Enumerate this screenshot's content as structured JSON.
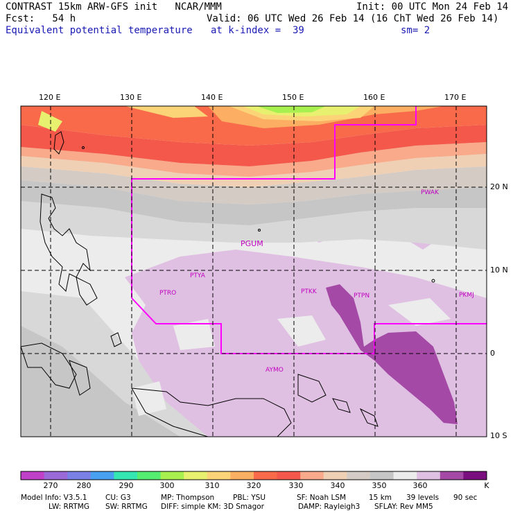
{
  "header": {
    "line1_left": "CONTRAST 15km ARW-GFS init   NCAR/MMM",
    "line1_right": "Init: 00 UTC Mon 24 Feb 14",
    "line2_left": "Fcst:   54 h",
    "line2_right": "Valid: 06 UTC Wed 26 Feb 14 (16 ChT Wed 26 Feb 14)",
    "line3_field": "Equivalent potential temperature",
    "line3_level": "at k-index =  39",
    "line3_sm": "sm= 2"
  },
  "map": {
    "lon_labels": [
      "120 E",
      "130 E",
      "140 E",
      "150 E",
      "160 E",
      "170 E"
    ],
    "lat_labels": [
      "20 N",
      "10 N",
      "0",
      "10 S"
    ],
    "stations": [
      "PWAK",
      "PGUM",
      "PTYA",
      "PTRO",
      "PTKK",
      "PTPN",
      "PKMJ",
      "AYMO"
    ],
    "outline_color": "#ff00ff",
    "station_color": "#c000c0"
  },
  "colorbar": {
    "labels": [
      "270",
      "280",
      "290",
      "300",
      "310",
      "320",
      "330",
      "340",
      "350",
      "360"
    ],
    "unit": "K",
    "colors": [
      "#c040c8",
      "#9a6ad8",
      "#7a80e6",
      "#4aa0f0",
      "#34e6b2",
      "#56ee70",
      "#a8f050",
      "#e8f070",
      "#fcd478",
      "#fcae62",
      "#f86a4a",
      "#f4584a",
      "#f8aa8a",
      "#f0d0b4",
      "#d4cbc4",
      "#c6c6c6",
      "#ececec",
      "#e0c0e2",
      "#a44aa6",
      "#7a0e7e"
    ]
  },
  "footer": {
    "model_info": "Model Info: V3.5.1",
    "cu": "CU: G3",
    "mp": "MP: Thompson",
    "pbl": "PBL: YSU",
    "sf": "SF: Noah LSM",
    "res": "15 km",
    "levels": "39 levels",
    "dt": "90 sec",
    "lw": "LW: RRTMG",
    "sw": "SW: RRTMG",
    "diff": "DIFF: simple KM: 3D Smagor",
    "damp": "DAMP: Rayleigh3",
    "sflay": "SFLAY: Rev MM5"
  }
}
